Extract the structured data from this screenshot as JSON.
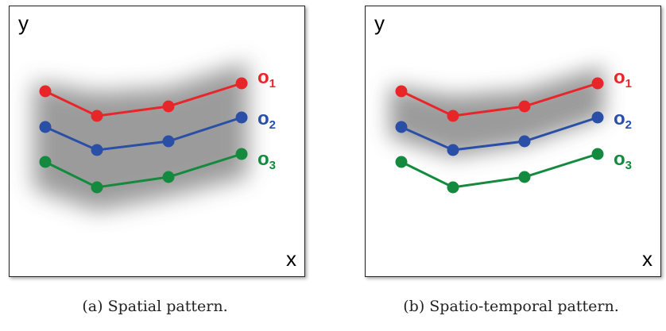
{
  "colors": {
    "o1": "#e8262a",
    "o2": "#2a4fa6",
    "o3": "#138a3e",
    "shade": "#8a8a8a"
  },
  "panels": [
    {
      "axis_y": "y",
      "axis_x": "x",
      "caption": "(a) Spatial pattern.",
      "labels": {
        "o1": {
          "main": "o",
          "sub": "1"
        },
        "o2": {
          "main": "o",
          "sub": "2"
        },
        "o3": {
          "main": "o",
          "sub": "3"
        }
      }
    },
    {
      "axis_y": "y",
      "axis_x": "x",
      "caption": "(b) Spatio-temporal pattern.",
      "labels": {
        "o1": {
          "main": "o",
          "sub": "1"
        },
        "o2": {
          "main": "o",
          "sub": "2"
        },
        "o3": {
          "main": "o",
          "sub": "3"
        }
      }
    }
  ]
}
